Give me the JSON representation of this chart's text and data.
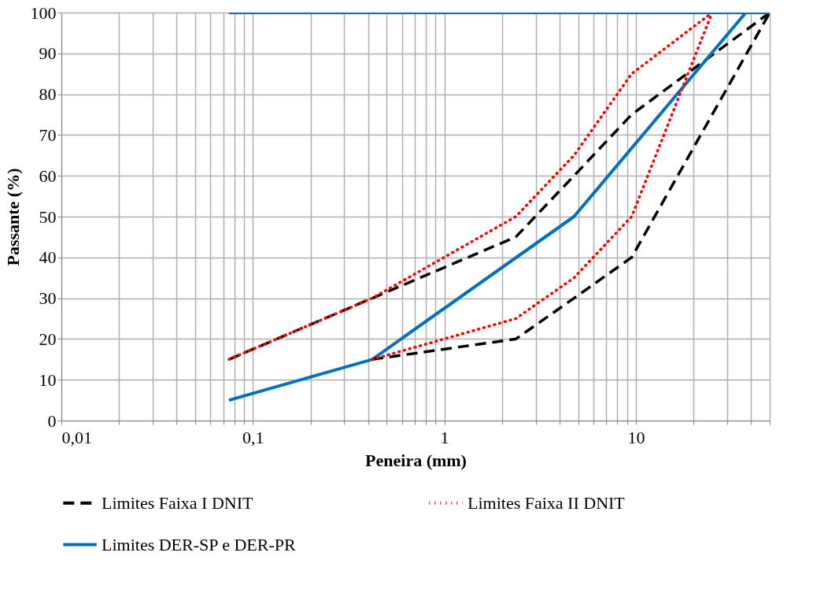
{
  "chart_data": {
    "type": "line",
    "xlabel": "Peneira (mm)",
    "ylabel": "Passante (%)",
    "log": "x",
    "xlim": [
      0.01,
      50
    ],
    "ylim": [
      0,
      100
    ],
    "xticks": [
      {
        "value": 0.01,
        "label": "0,01"
      },
      {
        "value": 0.02,
        "label": null
      },
      {
        "value": 0.03,
        "label": null
      },
      {
        "value": 0.04,
        "label": null
      },
      {
        "value": 0.05,
        "label": null
      },
      {
        "value": 0.06,
        "label": null
      },
      {
        "value": 0.07,
        "label": null
      },
      {
        "value": 0.08,
        "label": null
      },
      {
        "value": 0.09,
        "label": null
      },
      {
        "value": 0.1,
        "label": "0,1"
      },
      {
        "value": 0.2,
        "label": null
      },
      {
        "value": 0.3,
        "label": null
      },
      {
        "value": 0.4,
        "label": null
      },
      {
        "value": 0.5,
        "label": null
      },
      {
        "value": 0.6,
        "label": null
      },
      {
        "value": 0.7,
        "label": null
      },
      {
        "value": 0.8,
        "label": null
      },
      {
        "value": 0.9,
        "label": null
      },
      1,
      {
        "value": 2,
        "label": null
      },
      {
        "value": 3,
        "label": null
      },
      {
        "value": 4,
        "label": null
      },
      {
        "value": 5,
        "label": null
      },
      {
        "value": 6,
        "label": null
      },
      {
        "value": 7,
        "label": null
      },
      {
        "value": 8,
        "label": null
      },
      {
        "value": 9,
        "label": null
      },
      10,
      {
        "value": 20,
        "label": null
      },
      {
        "value": 30,
        "label": null
      },
      {
        "value": 40,
        "label": null
      },
      {
        "value": 50,
        "label": null
      }
    ],
    "yticks": [
      0,
      10,
      20,
      30,
      40,
      50,
      60,
      70,
      80,
      90,
      100
    ],
    "grid": true,
    "legend": "bottom",
    "series": [
      {
        "name": "Limites Faixa I DNIT",
        "color": "#000000",
        "line_style": "dashed",
        "x": [
          0.075,
          0.42,
          2.36,
          4.75,
          9.5,
          50
        ],
        "values": [
          15,
          30,
          45,
          60,
          75,
          100
        ]
      },
      {
        "name": "Limites Faixa II DNIT",
        "color": "#ff0000",
        "line_style": "dotted",
        "x": [
          0.075,
          0.42,
          2.36,
          4.75,
          9.5,
          25
        ],
        "values": [
          15,
          30,
          50,
          65,
          85,
          100
        ]
      },
      {
        "name": "Limites DER-SP e DER-PR",
        "color": "#0070c0",
        "line_style": "solid",
        "x": [
          0.075,
          0.42,
          4.75,
          37.5
        ],
        "values": [
          5,
          15,
          50,
          100
        ]
      },
      {
        "color": "#000000",
        "line_style": "dashed",
        "x": [
          0.42,
          2.36,
          4.75,
          9.5,
          50
        ],
        "values": [
          15,
          20,
          30,
          40,
          100
        ]
      },
      {
        "color": "#ff0000",
        "line_style": "dotted",
        "x": [
          0.42,
          2.36,
          4.75,
          9.5,
          25
        ],
        "values": [
          15,
          25,
          35,
          50,
          100
        ]
      },
      {
        "color": "#0070c0",
        "line_style": "solid",
        "x": [
          0.075,
          50
        ],
        "values": [
          100,
          100
        ]
      }
    ]
  }
}
